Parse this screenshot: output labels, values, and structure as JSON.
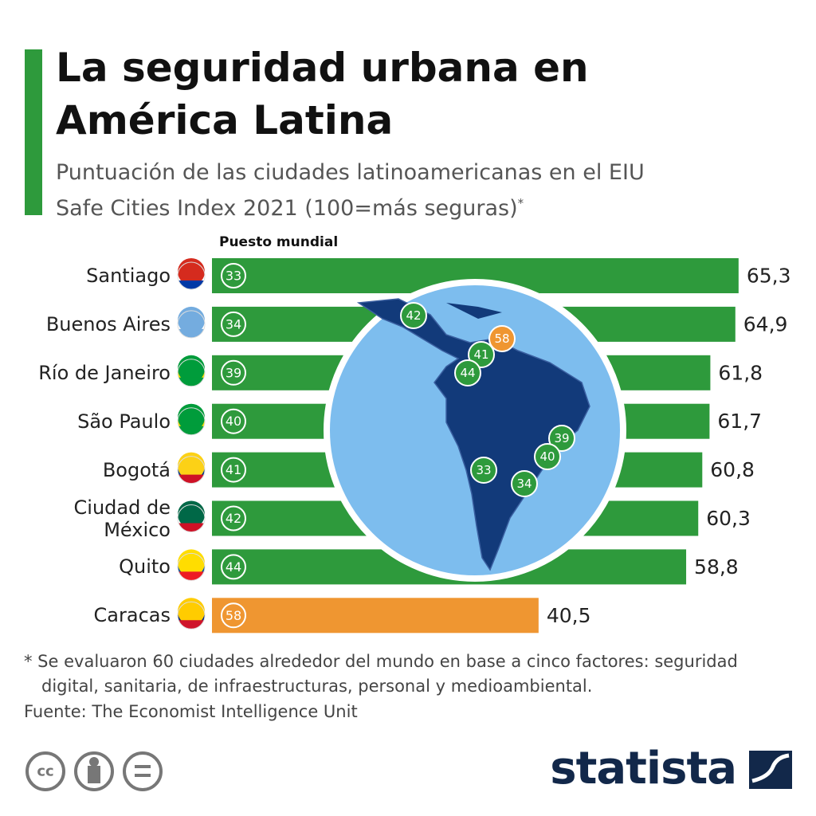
{
  "chart_data": {
    "type": "bar",
    "title": "La seguridad urbana en América Latina",
    "subtitle": "Puntuación de las ciudades latinoamericanas en el EIU Safe Cities Index 2021 (100=más seguras)",
    "subtitle_note": "*",
    "rank_label": "Puesto mundial",
    "categories": [
      "Santiago",
      "Buenos Aires",
      "Río de Janeiro",
      "São Paulo",
      "Bogotá",
      "Ciudad de México",
      "Quito",
      "Caracas"
    ],
    "values": [
      65.3,
      64.9,
      61.8,
      61.7,
      60.8,
      60.3,
      58.8,
      40.5
    ],
    "value_labels": [
      "65,3",
      "64,9",
      "61,8",
      "61,7",
      "60,8",
      "60,3",
      "58,8",
      "40,5"
    ],
    "ranks": [
      33,
      34,
      39,
      40,
      41,
      42,
      44,
      58
    ],
    "colors": [
      "#2e9a3c",
      "#2e9a3c",
      "#2e9a3c",
      "#2e9a3c",
      "#2e9a3c",
      "#2e9a3c",
      "#2e9a3c",
      "#ef9631"
    ],
    "footnote": "* Se evaluaron 60 ciudades alrededor del mundo en base a cinco factores: seguridad digital, sanitaria, de infraestructuras, personal y medioambiental.",
    "source": "Fuente: The Economist Intelligence Unit",
    "brand": "statista"
  }
}
